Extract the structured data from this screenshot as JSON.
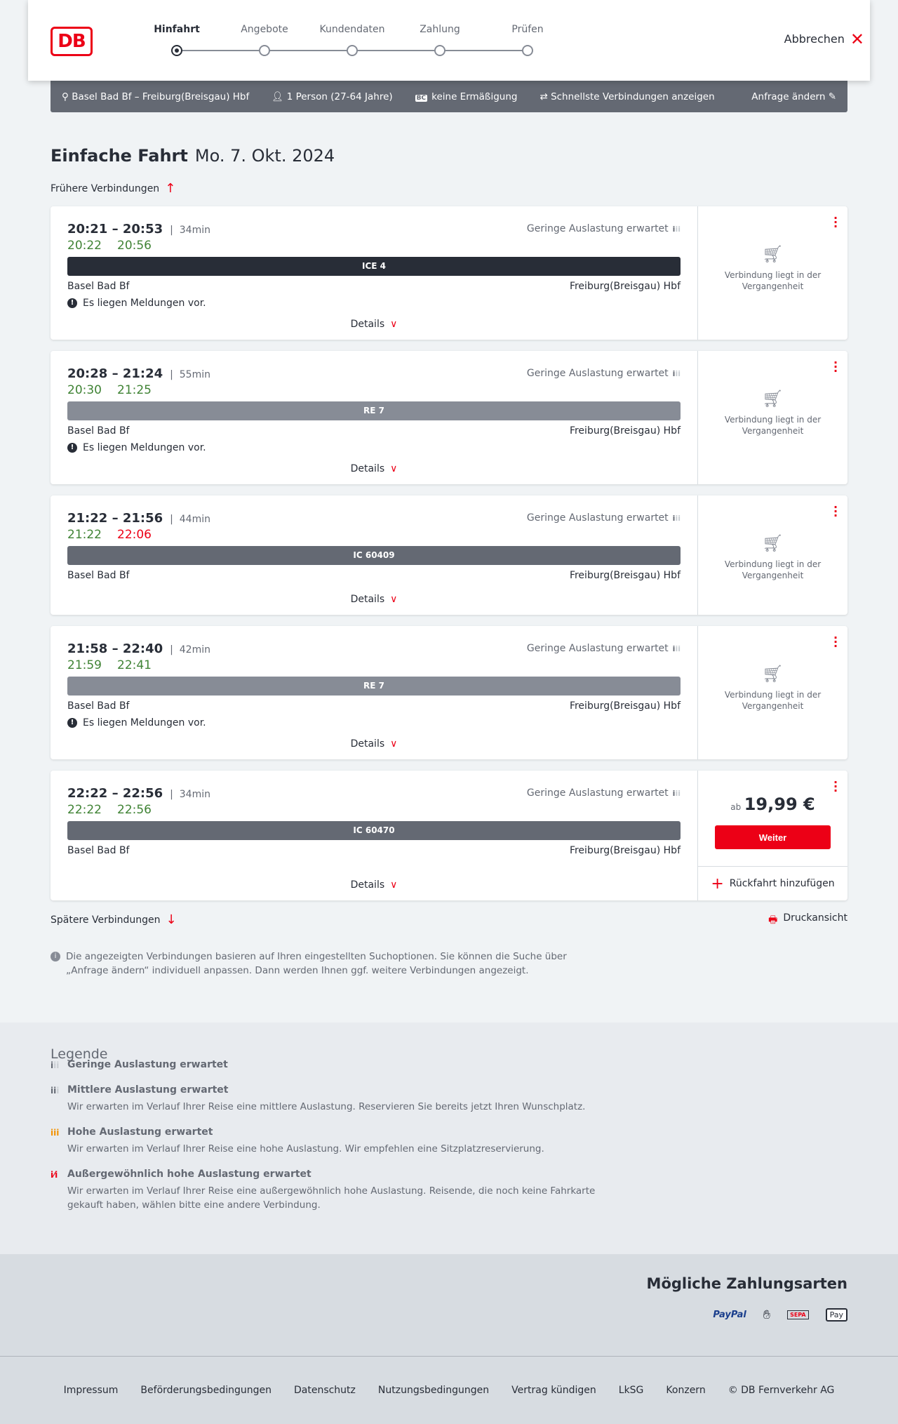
{
  "header": {
    "logo": "DB",
    "steps": [
      "Hinfahrt",
      "Angebote",
      "Kundendaten",
      "Zahlung",
      "Prüfen"
    ],
    "active_step": 0,
    "cancel": "Abbrechen"
  },
  "infobar": {
    "route": "Basel Bad Bf – Freiburg(Breisgau) Hbf",
    "travellers": "1 Person (27-64 Jahre)",
    "bc_badge": "BC",
    "discount": "keine Ermäßigung",
    "fastest": "Schnellste Verbindungen anzeigen",
    "edit": "Anfrage ändern"
  },
  "page": {
    "title": "Einfache Fahrt",
    "date": "Mo. 7. Okt. 2024",
    "earlier": "Frühere Verbindungen",
    "later": "Spätere Verbindungen",
    "print": "Druckansicht",
    "note": "Die angezeigten Verbindungen basieren auf Ihren eingestellten Suchoptionen. Sie können die Suche über „Anfrage ändern“ individuell anpassen. Dann werden Ihnen ggf. weitere Verbindungen angezeigt."
  },
  "connections": [
    {
      "times": "20:21 – 20:53",
      "duration": "34min",
      "rt_dep": "20:22",
      "rt_dep_late": false,
      "rt_arr": "20:56",
      "rt_arr_late": false,
      "load": "Geringe Auslastung erwartet",
      "train": "ICE 4",
      "train_color": "#282d37",
      "from": "Basel Bad Bf",
      "to": "Freiburg(Breisgau) Hbf",
      "message": "Es liegen Meldungen vor.",
      "details": "Details",
      "status": "Verbindung liegt in der Vergangenheit"
    },
    {
      "times": "20:28 – 21:24",
      "duration": "55min",
      "rt_dep": "20:30",
      "rt_dep_late": false,
      "rt_arr": "21:25",
      "rt_arr_late": false,
      "load": "Geringe Auslastung erwartet",
      "train": "RE 7",
      "train_color": "#878c96",
      "from": "Basel Bad Bf",
      "to": "Freiburg(Breisgau) Hbf",
      "message": "Es liegen Meldungen vor.",
      "details": "Details",
      "status": "Verbindung liegt in der Vergangenheit"
    },
    {
      "times": "21:22 – 21:56",
      "duration": "44min",
      "rt_dep": "21:22",
      "rt_dep_late": false,
      "rt_arr": "22:06",
      "rt_arr_late": true,
      "load": "Geringe Auslastung erwartet",
      "train": "IC 60409",
      "train_color": "#646973",
      "from": "Basel Bad Bf",
      "to": "Freiburg(Breisgau) Hbf",
      "details": "Details",
      "status": "Verbindung liegt in der Vergangenheit"
    },
    {
      "times": "21:58 – 22:40",
      "duration": "42min",
      "rt_dep": "21:59",
      "rt_dep_late": false,
      "rt_arr": "22:41",
      "rt_arr_late": false,
      "load": "Geringe Auslastung erwartet",
      "train": "RE 7",
      "train_color": "#878c96",
      "from": "Basel Bad Bf",
      "to": "Freiburg(Breisgau) Hbf",
      "message": "Es liegen Meldungen vor.",
      "details": "Details",
      "status": "Verbindung liegt in der Vergangenheit"
    },
    {
      "times": "22:22 – 22:56",
      "duration": "34min",
      "rt_dep": "22:22",
      "rt_dep_late": false,
      "rt_arr": "22:56",
      "rt_arr_late": false,
      "load": "Geringe Auslastung erwartet",
      "train": "IC 60470",
      "train_color": "#646973",
      "from": "Basel Bad Bf",
      "to": "Freiburg(Breisgau) Hbf",
      "details": "Details",
      "price_prefix": "ab",
      "price": "19,99 €",
      "button": "Weiter",
      "return": "Rückfahrt hinzufügen"
    }
  ],
  "legend": {
    "title": "Legende",
    "items": [
      {
        "label": "Geringe Auslastung erwartet",
        "color": "#646973"
      },
      {
        "label": "Mittlere Auslastung erwartet",
        "text": "Wir erwarten im Verlauf Ihrer Reise eine mittlere Auslastung. Reservieren Sie bereits jetzt Ihren Wunschplatz.",
        "color": "#646973"
      },
      {
        "label": "Hohe Auslastung erwartet",
        "text": "Wir erwarten im Verlauf Ihrer Reise eine hohe Auslastung. Wir empfehlen eine Sitzplatzreservierung.",
        "color": "#f39200"
      },
      {
        "label": "Außergewöhnlich hohe Auslastung erwartet",
        "text": "Wir erwarten im Verlauf Ihrer Reise eine außergewöhnlich hohe Auslastung. Reisende, die noch keine Fahrkarte gekauft haben, wählen bitte eine andere Verbindung.",
        "color": "#ec0016"
      }
    ]
  },
  "payment": {
    "title": "Mögliche Zahlungsarten",
    "methods": [
      "PayPal",
      "SEPA",
      "Pay"
    ]
  },
  "footer": [
    "Impressum",
    "Beförderungsbedingungen",
    "Datenschutz",
    "Nutzungsbedingungen",
    "Vertrag kündigen",
    "LkSG",
    "Konzern",
    "© DB Fernverkehr AG"
  ]
}
